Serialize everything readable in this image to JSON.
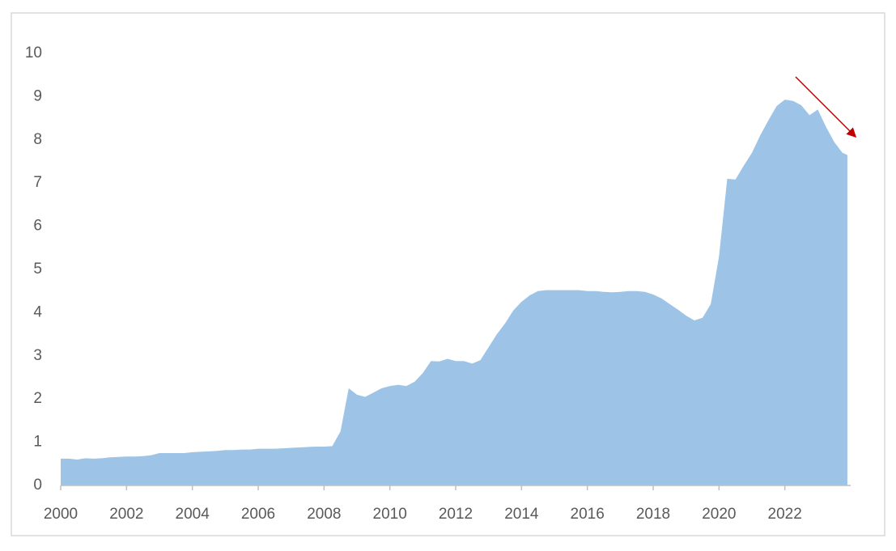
{
  "chart_data": {
    "type": "area",
    "color": "#9dc3e6",
    "x": [
      2000,
      2000.25,
      2000.5,
      2000.75,
      2001,
      2001.25,
      2001.5,
      2001.75,
      2002,
      2002.25,
      2002.5,
      2002.75,
      2003,
      2003.25,
      2003.5,
      2003.75,
      2004,
      2004.25,
      2004.5,
      2004.75,
      2005,
      2005.25,
      2005.5,
      2005.75,
      2006,
      2006.25,
      2006.5,
      2006.75,
      2007,
      2007.25,
      2007.5,
      2007.75,
      2008,
      2008.25,
      2008.5,
      2008.75,
      2009,
      2009.25,
      2009.5,
      2009.75,
      2010,
      2010.25,
      2010.5,
      2010.75,
      2011,
      2011.25,
      2011.5,
      2011.75,
      2012,
      2012.25,
      2012.5,
      2012.75,
      2013,
      2013.25,
      2013.5,
      2013.75,
      2014,
      2014.25,
      2014.5,
      2014.75,
      2015,
      2015.25,
      2015.5,
      2015.75,
      2016,
      2016.25,
      2016.5,
      2016.75,
      2017,
      2017.25,
      2017.5,
      2017.75,
      2018,
      2018.25,
      2018.5,
      2018.75,
      2019,
      2019.25,
      2019.5,
      2019.75,
      2020,
      2020.25,
      2020.5,
      2020.75,
      2021,
      2021.25,
      2021.5,
      2021.75,
      2022,
      2022.25,
      2022.5,
      2022.75,
      2023,
      2023.25,
      2023.5,
      2023.75,
      2023.9
    ],
    "values": [
      0.62,
      0.62,
      0.6,
      0.63,
      0.62,
      0.63,
      0.65,
      0.66,
      0.67,
      0.67,
      0.68,
      0.7,
      0.75,
      0.75,
      0.75,
      0.75,
      0.77,
      0.78,
      0.79,
      0.8,
      0.82,
      0.82,
      0.83,
      0.83,
      0.85,
      0.85,
      0.85,
      0.86,
      0.87,
      0.88,
      0.89,
      0.9,
      0.9,
      0.91,
      1.25,
      2.25,
      2.1,
      2.05,
      2.15,
      2.25,
      2.3,
      2.33,
      2.3,
      2.4,
      2.6,
      2.88,
      2.87,
      2.93,
      2.88,
      2.88,
      2.82,
      2.9,
      3.2,
      3.5,
      3.75,
      4.05,
      4.25,
      4.4,
      4.5,
      4.52,
      4.52,
      4.52,
      4.52,
      4.52,
      4.5,
      4.5,
      4.48,
      4.47,
      4.48,
      4.5,
      4.5,
      4.48,
      4.42,
      4.33,
      4.2,
      4.07,
      3.93,
      3.82,
      3.88,
      4.2,
      5.3,
      7.1,
      7.08,
      7.4,
      7.7,
      8.1,
      8.45,
      8.78,
      8.93,
      8.9,
      8.8,
      8.57,
      8.7,
      8.3,
      7.95,
      7.7,
      7.65
    ],
    "xlim": [
      2000,
      2024
    ],
    "xticks": [
      2000,
      2002,
      2004,
      2006,
      2008,
      2010,
      2012,
      2014,
      2016,
      2018,
      2020,
      2022
    ],
    "ylim": [
      0,
      10
    ],
    "yticks": [
      0,
      1,
      2,
      3,
      4,
      5,
      6,
      7,
      8,
      9,
      10
    ],
    "grid": false
  }
}
